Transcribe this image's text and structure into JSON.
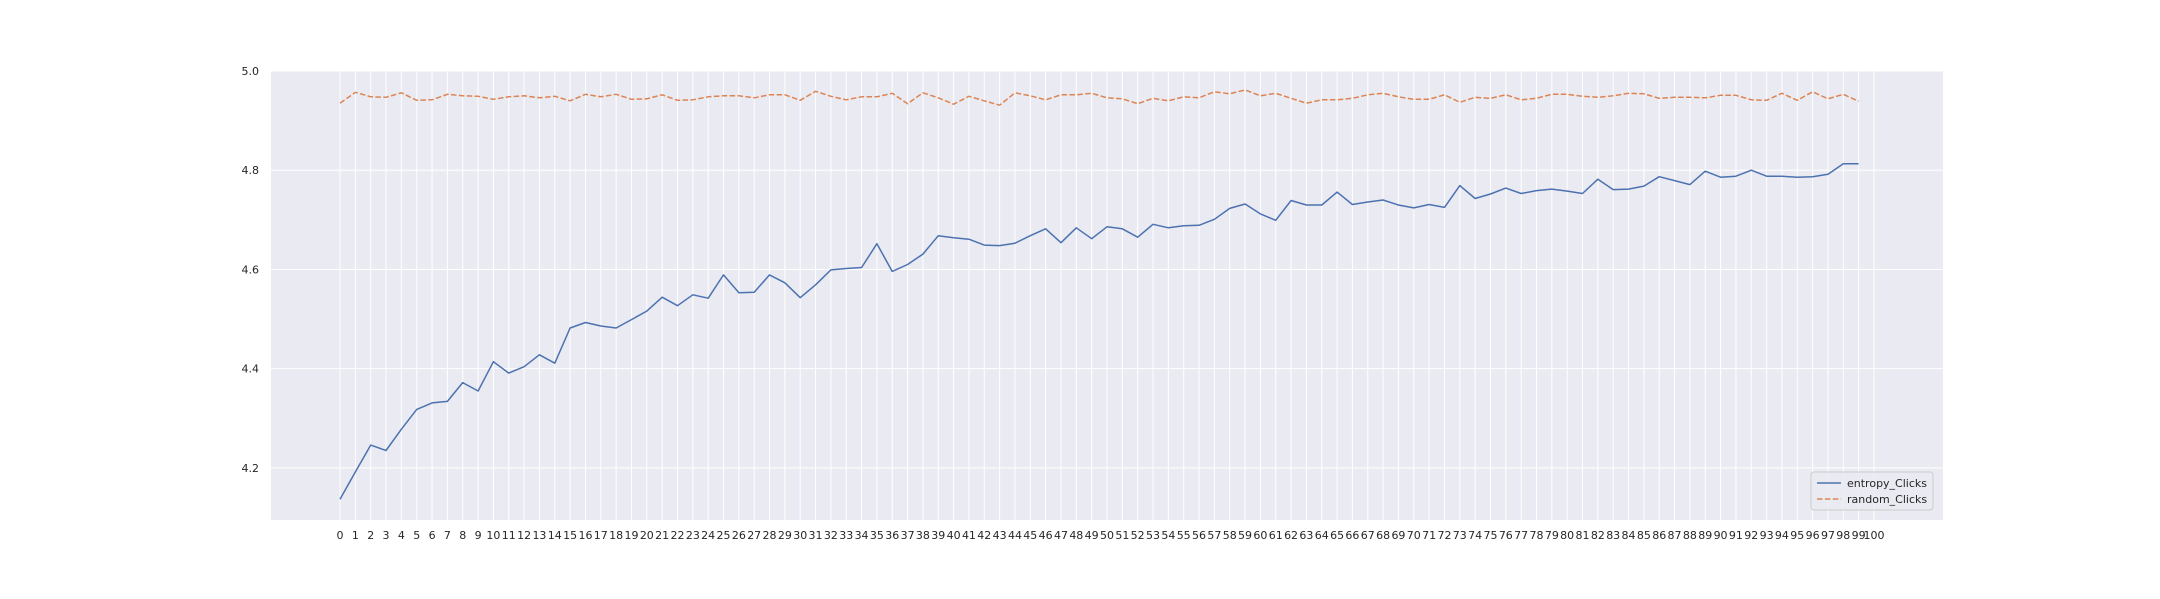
{
  "chart_data": {
    "type": "line",
    "title": "",
    "xlabel": "",
    "ylabel": "",
    "x": [
      0,
      1,
      2,
      3,
      4,
      5,
      6,
      7,
      8,
      9,
      10,
      11,
      12,
      13,
      14,
      15,
      16,
      17,
      18,
      19,
      20,
      21,
      22,
      23,
      24,
      25,
      26,
      27,
      28,
      29,
      30,
      31,
      32,
      33,
      34,
      35,
      36,
      37,
      38,
      39,
      40,
      41,
      42,
      43,
      44,
      45,
      46,
      47,
      48,
      49,
      50,
      51,
      52,
      53,
      54,
      55,
      56,
      57,
      58,
      59,
      60,
      61,
      62,
      63,
      64,
      65,
      66,
      67,
      68,
      69,
      70,
      71,
      72,
      73,
      74,
      75,
      76,
      77,
      78,
      79,
      80,
      81,
      82,
      83,
      84,
      85,
      86,
      87,
      88,
      89,
      90,
      91,
      92,
      93,
      94,
      95,
      96,
      97,
      98,
      99
    ],
    "xticks": [
      0,
      1,
      2,
      3,
      4,
      5,
      6,
      7,
      8,
      9,
      10,
      11,
      12,
      13,
      14,
      15,
      16,
      17,
      18,
      19,
      20,
      21,
      22,
      23,
      24,
      25,
      26,
      27,
      28,
      29,
      30,
      31,
      32,
      33,
      34,
      35,
      36,
      37,
      38,
      39,
      40,
      41,
      42,
      43,
      44,
      45,
      46,
      47,
      48,
      49,
      50,
      51,
      52,
      53,
      54,
      55,
      56,
      57,
      58,
      59,
      60,
      61,
      62,
      63,
      64,
      65,
      66,
      67,
      68,
      69,
      70,
      71,
      72,
      73,
      74,
      75,
      76,
      77,
      78,
      79,
      80,
      81,
      82,
      83,
      84,
      85,
      86,
      87,
      88,
      89,
      90,
      91,
      92,
      93,
      94,
      95,
      96,
      97,
      98,
      99,
      100
    ],
    "xlim": [
      -4.5,
      104.5
    ],
    "ylim": [
      4.095,
      5.0
    ],
    "yticks": [
      4.2,
      4.4,
      4.6,
      4.8,
      5.0
    ],
    "yticklabels": [
      "4.2",
      "4.4",
      "4.6",
      "4.8",
      "5.0"
    ],
    "grid": true,
    "legend_position": "lower-right",
    "series": [
      {
        "name": "entropy_Clicks",
        "color": "#4c72b0",
        "style": "solid",
        "values": [
          4.137,
          4.192,
          4.246,
          4.235,
          4.278,
          4.318,
          4.331,
          4.334,
          4.372,
          4.355,
          4.414,
          4.391,
          4.404,
          4.428,
          4.411,
          4.482,
          4.493,
          4.486,
          4.482,
          4.499,
          4.516,
          4.544,
          4.527,
          4.549,
          4.542,
          4.589,
          4.553,
          4.554,
          4.589,
          4.573,
          4.543,
          4.569,
          4.599,
          4.602,
          4.604,
          4.652,
          4.596,
          4.61,
          4.631,
          4.668,
          4.664,
          4.661,
          4.649,
          4.648,
          4.653,
          4.668,
          4.682,
          4.654,
          4.684,
          4.662,
          4.686,
          4.682,
          4.665,
          4.691,
          4.684,
          4.688,
          4.689,
          4.701,
          4.723,
          4.732,
          4.712,
          4.699,
          4.739,
          4.73,
          4.73,
          4.756,
          4.731,
          4.736,
          4.74,
          4.73,
          4.724,
          4.731,
          4.725,
          4.769,
          4.743,
          4.752,
          4.764,
          4.753,
          4.759,
          4.762,
          4.758,
          4.753,
          4.782,
          4.761,
          4.762,
          4.768,
          4.787,
          4.779,
          4.771,
          4.798,
          4.786,
          4.788,
          4.8,
          4.788,
          4.788,
          4.786,
          4.787,
          4.792,
          4.813,
          4.813
        ]
      },
      {
        "name": "random_Clicks",
        "color": "#dd8452",
        "style": "dashed",
        "values": [
          4.935,
          4.957,
          4.948,
          4.947,
          4.956,
          4.941,
          4.942,
          4.953,
          4.95,
          4.949,
          4.943,
          4.948,
          4.95,
          4.946,
          4.949,
          4.94,
          4.953,
          4.948,
          4.953,
          4.943,
          4.944,
          4.952,
          4.941,
          4.942,
          4.948,
          4.95,
          4.95,
          4.946,
          4.952,
          4.952,
          4.941,
          4.959,
          4.949,
          4.942,
          4.948,
          4.948,
          4.955,
          4.934,
          4.956,
          4.946,
          4.933,
          4.949,
          4.94,
          4.931,
          4.956,
          4.95,
          4.942,
          4.952,
          4.952,
          4.955,
          4.946,
          4.944,
          4.934,
          4.945,
          4.94,
          4.948,
          4.946,
          4.958,
          4.954,
          4.962,
          4.95,
          4.955,
          4.945,
          4.935,
          4.942,
          4.942,
          4.945,
          4.952,
          4.955,
          4.948,
          4.943,
          4.943,
          4.952,
          4.937,
          4.947,
          4.945,
          4.952,
          4.942,
          4.945,
          4.953,
          4.953,
          4.949,
          4.947,
          4.95,
          4.955,
          4.954,
          4.945,
          4.947,
          4.947,
          4.946,
          4.951,
          4.951,
          4.942,
          4.941,
          4.955,
          4.941,
          4.958,
          4.944,
          4.953,
          4.939
        ]
      }
    ]
  }
}
